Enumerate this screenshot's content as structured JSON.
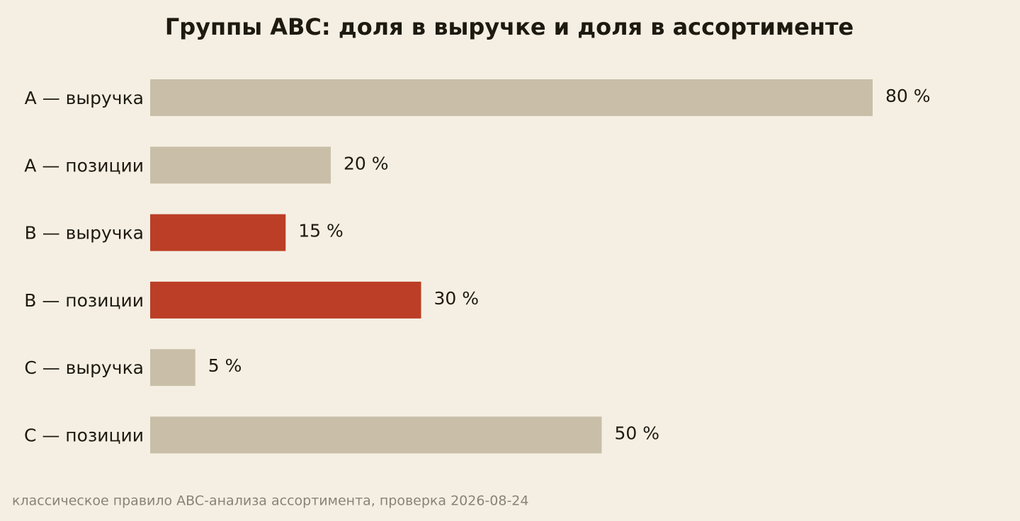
{
  "chart_data": {
    "type": "bar",
    "orientation": "horizontal",
    "title": "Группы ABC: доля в выручке и доля в ассортименте",
    "categories": [
      "A — выручка",
      "A — позиции",
      "B — выручка",
      "B — позиции",
      "C — выручка",
      "C — позиции"
    ],
    "values": [
      80,
      20,
      15,
      30,
      5,
      50
    ],
    "value_labels": [
      "80 %",
      "20 %",
      "15 %",
      "30 %",
      "5 %",
      "50 %"
    ],
    "colors": [
      "#c9bfa8",
      "#c9bfa8",
      "#bc3e26",
      "#bc3e26",
      "#c9bfa8",
      "#c9bfa8"
    ],
    "note": "классическое правило ABC-анализа ассортимента, проверка 2026-08-24"
  }
}
